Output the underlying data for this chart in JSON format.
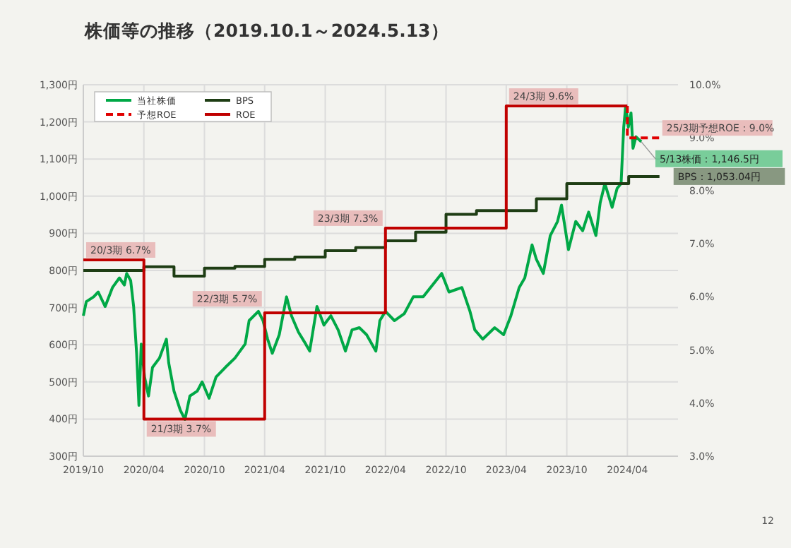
{
  "chart_data": {
    "type": "line",
    "title": "株価等の推移（2019.10.1～2024.5.13）",
    "xlim": [
      "2019-10-01",
      "2024-09-01"
    ],
    "xticks": [
      {
        "value": "2019-10-01",
        "label": "2019/10"
      },
      {
        "value": "2020-04-01",
        "label": "2020/04"
      },
      {
        "value": "2020-10-01",
        "label": "2020/10"
      },
      {
        "value": "2021-04-01",
        "label": "2021/04"
      },
      {
        "value": "2021-10-01",
        "label": "2021/10"
      },
      {
        "value": "2022-04-01",
        "label": "2022/04"
      },
      {
        "value": "2022-10-01",
        "label": "2022/10"
      },
      {
        "value": "2023-04-01",
        "label": "2023/04"
      },
      {
        "value": "2023-10-01",
        "label": "2023/10"
      },
      {
        "value": "2024-04-01",
        "label": "2024/04"
      }
    ],
    "ylim": [
      300,
      1300
    ],
    "yticks": [
      {
        "value": 300,
        "label": "300円"
      },
      {
        "value": 400,
        "label": "400円"
      },
      {
        "value": 500,
        "label": "500円"
      },
      {
        "value": 600,
        "label": "600円"
      },
      {
        "value": 700,
        "label": "700円"
      },
      {
        "value": 800,
        "label": "800円"
      },
      {
        "value": 900,
        "label": "900円"
      },
      {
        "value": 1000,
        "label": "1,000円"
      },
      {
        "value": 1100,
        "label": "1,100円"
      },
      {
        "value": 1200,
        "label": "1,200円"
      },
      {
        "value": 1300,
        "label": "1,300円"
      }
    ],
    "y2lim": [
      3,
      10
    ],
    "y2ticks": [
      {
        "value": 3,
        "label": "3.0%"
      },
      {
        "value": 4,
        "label": "4.0%"
      },
      {
        "value": 5,
        "label": "5.0%"
      },
      {
        "value": 6,
        "label": "6.0%"
      },
      {
        "value": 7,
        "label": "7.0%"
      },
      {
        "value": 8,
        "label": "8.0%"
      },
      {
        "value": 9,
        "label": "9.0%"
      },
      {
        "value": 10,
        "label": "10.0%"
      }
    ],
    "grid": true,
    "legend": "top left",
    "marker": "none",
    "series": [
      {
        "name": "当社株価",
        "color": "#00a846",
        "x": [
          "2019-10-01",
          "2019-10-10",
          "2019-11-01",
          "2019-11-15",
          "2019-12-06",
          "2019-12-28",
          "2020-01-18",
          "2020-02-02",
          "2020-02-09",
          "2020-02-21",
          "2020-03-01",
          "2020-03-10",
          "2020-03-17",
          "2020-03-24",
          "2020-04-03",
          "2020-04-15",
          "2020-04-27",
          "2020-05-18",
          "2020-06-08",
          "2020-06-15",
          "2020-07-01",
          "2020-07-20",
          "2020-08-03",
          "2020-08-18",
          "2020-09-09",
          "2020-09-24",
          "2020-10-15",
          "2020-11-05",
          "2020-12-03",
          "2021-01-01",
          "2021-02-01",
          "2021-02-13",
          "2021-03-13",
          "2021-03-27",
          "2021-04-10",
          "2021-04-24",
          "2021-05-15",
          "2021-06-06",
          "2021-06-21",
          "2021-07-12",
          "2021-08-03",
          "2021-08-15",
          "2021-09-06",
          "2021-09-27",
          "2021-10-18",
          "2021-11-09",
          "2021-12-01",
          "2021-12-21",
          "2022-01-12",
          "2022-02-03",
          "2022-03-03",
          "2022-03-15",
          "2022-04-01",
          "2022-04-28",
          "2022-05-28",
          "2022-06-24",
          "2022-07-24",
          "2022-08-15",
          "2022-09-18",
          "2022-10-10",
          "2022-11-18",
          "2022-12-12",
          "2022-12-27",
          "2023-01-20",
          "2023-02-25",
          "2023-03-24",
          "2023-04-15",
          "2023-05-10",
          "2023-05-27",
          "2023-06-18",
          "2023-07-01",
          "2023-07-22",
          "2023-08-12",
          "2023-09-03",
          "2023-09-15",
          "2023-10-06",
          "2023-10-28",
          "2023-11-18",
          "2023-12-06",
          "2023-12-28",
          "2024-01-10",
          "2024-01-24",
          "2024-02-15",
          "2024-03-01",
          "2024-03-13",
          "2024-03-21",
          "2024-03-27",
          "2024-04-04",
          "2024-04-12",
          "2024-04-18",
          "2024-04-27",
          "2024-05-13"
        ],
        "values": [
          678,
          716,
          729,
          742,
          703,
          754,
          780,
          761,
          792,
          773,
          703,
          577,
          437,
          602,
          513,
          462,
          539,
          564,
          615,
          551,
          475,
          424,
          399,
          462,
          475,
          500,
          456,
          513,
          539,
          564,
          602,
          665,
          690,
          665,
          615,
          577,
          627,
          729,
          678,
          634,
          602,
          583,
          703,
          653,
          678,
          640,
          583,
          640,
          646,
          627,
          583,
          665,
          690,
          665,
          684,
          729,
          729,
          754,
          792,
          742,
          754,
          691,
          640,
          615,
          646,
          627,
          678,
          754,
          780,
          869,
          830,
          792,
          894,
          932,
          976,
          856,
          932,
          907,
          957,
          894,
          983,
          1034,
          970,
          1021,
          1034,
          1186,
          1243,
          1186,
          1224,
          1129,
          1160,
          1146.5
        ]
      },
      {
        "name": "BPS",
        "type": "step",
        "color": "#1e3d14",
        "x": [
          "2019-10-01",
          "2020-04-01",
          "2020-07-01",
          "2020-10-01",
          "2021-01-01",
          "2021-04-01",
          "2021-07-01",
          "2021-10-01",
          "2022-01-01",
          "2022-04-01",
          "2022-07-01",
          "2022-10-01",
          "2023-01-01",
          "2023-07-01",
          "2023-10-01",
          "2024-04-05",
          "2024-07-07"
        ],
        "values": [
          800,
          810,
          785,
          806,
          811,
          830,
          836,
          853,
          862,
          880,
          903,
          951,
          961,
          993,
          1034,
          1053.04,
          1053.04
        ]
      },
      {
        "name": "予想ROE",
        "type": "line",
        "axis": "y2",
        "line_style": "dashed",
        "color": "#e00000",
        "x": [
          "2024-04-01",
          "2024-04-01",
          "2024-07-07"
        ],
        "values": [
          9.6,
          9.0,
          9.0
        ],
        "value_labels": [
          null,
          null,
          "25/3期予想ROE：9.0%"
        ]
      },
      {
        "name": "ROE",
        "type": "step",
        "axis": "y2",
        "color": "#c00000",
        "x": [
          "2019-10-01",
          "2020-04-01",
          "2021-04-01",
          "2022-04-01",
          "2023-04-01",
          "2024-04-01"
        ],
        "values": [
          6.7,
          3.7,
          5.7,
          7.3,
          9.6,
          9.6
        ],
        "value_labels": [
          "20/3期 6.7%",
          "21/3期 3.7%",
          "22/3期 5.7%",
          "23/3期 7.3%",
          "24/3期 9.6%",
          null
        ]
      }
    ],
    "annotations": [
      {
        "text": "5/13株価：1,146.5円",
        "x": "2024-05-13",
        "y": 1146.5
      },
      {
        "text": "BPS：1,053.04円",
        "x": "2024-07-07",
        "y": 1053.04
      },
      "12"
    ]
  }
}
